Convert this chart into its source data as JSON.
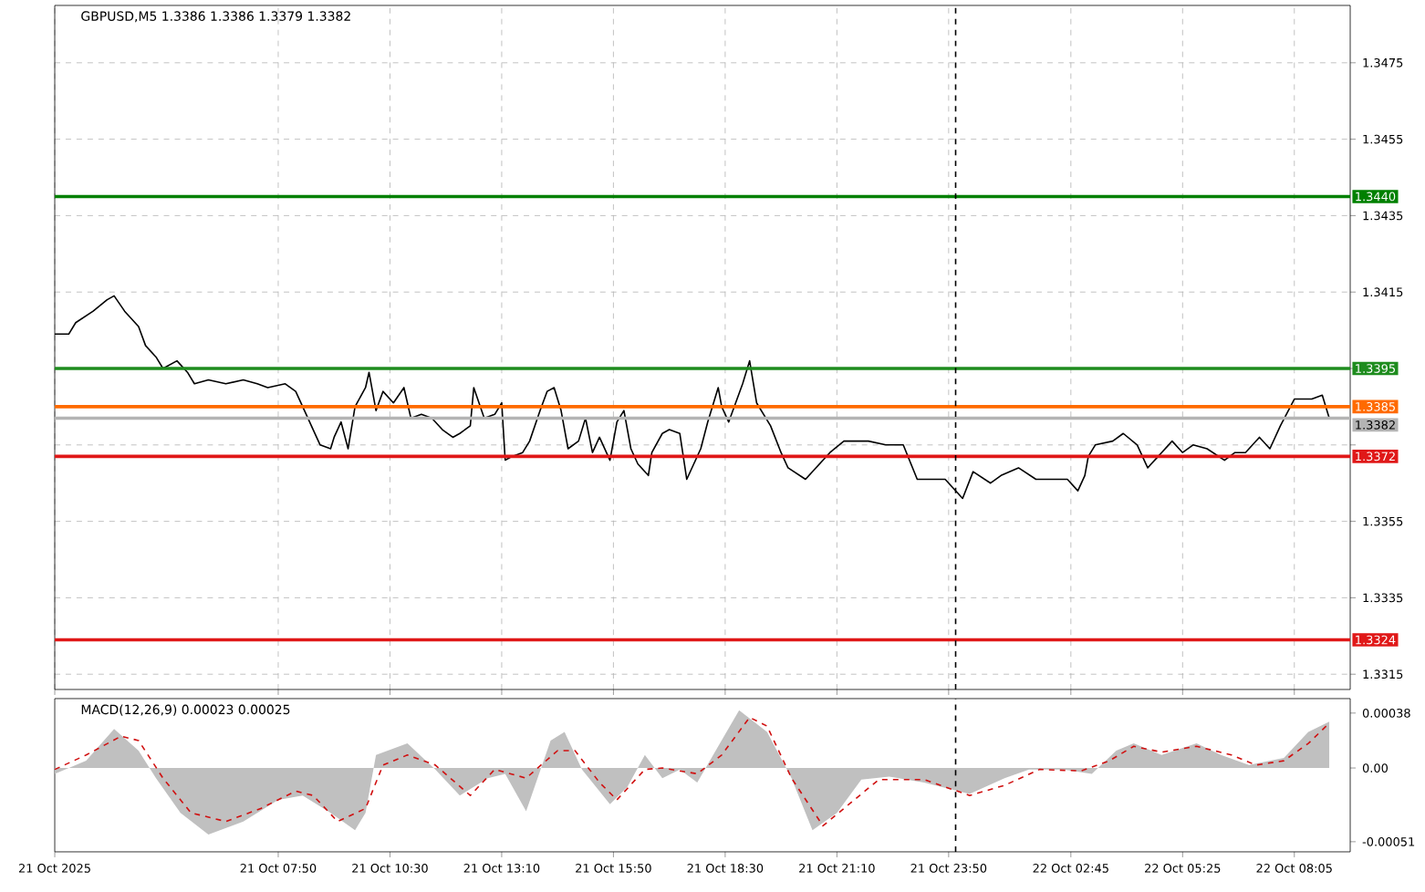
{
  "chart_data": [
    {
      "type": "line",
      "title": "GBPUSD,M5  1.3386 1.3386 1.3379 1.3382",
      "xlim": [
        "2025-10-21T02:30",
        "2025-10-22T09:25"
      ],
      "ylim": [
        1.3311,
        1.349
      ],
      "xticks": [
        {
          "value": "2025-10-21T02:30",
          "label": null
        },
        {
          "value": "2025-10-21T07:50",
          "label": null
        },
        {
          "value": "2025-10-21T10:30",
          "label": null
        },
        {
          "value": "2025-10-21T13:10",
          "label": null
        },
        {
          "value": "2025-10-21T15:50",
          "label": null
        },
        {
          "value": "2025-10-21T18:30",
          "label": null
        },
        {
          "value": "2025-10-21T21:10",
          "label": null
        },
        {
          "value": "2025-10-21T23:50",
          "label": null
        },
        {
          "value": "2025-10-22T02:45",
          "label": null
        },
        {
          "value": "2025-10-22T05:25",
          "label": null
        },
        {
          "value": "2025-10-22T08:05",
          "label": null
        }
      ],
      "yticks": [
        1.3315,
        1.3335,
        1.3355,
        {
          "value": 1.3375,
          "label": null
        },
        {
          "value": 1.3395,
          "label": null
        },
        1.3415,
        1.3435,
        1.3455,
        1.3475
      ],
      "tick_labels": "y",
      "grid": true,
      "line_style": "solid",
      "series": [
        {
          "color": "#000000",
          "x": [
            "2025-10-21T02:30",
            "2025-10-21T02:50",
            "2025-10-21T03:00",
            "2025-10-21T03:25",
            "2025-10-21T03:45",
            "2025-10-21T03:55",
            "2025-10-21T04:10",
            "2025-10-21T04:30",
            "2025-10-21T04:40",
            "2025-10-21T04:55",
            "2025-10-21T05:05",
            "2025-10-21T05:15",
            "2025-10-21T05:25",
            "2025-10-21T05:40",
            "2025-10-21T05:50",
            "2025-10-21T06:10",
            "2025-10-21T06:35",
            "2025-10-21T07:00",
            "2025-10-21T07:20",
            "2025-10-21T07:35",
            "2025-10-21T08:00",
            "2025-10-21T08:15",
            "2025-10-21T08:25",
            "2025-10-21T08:40",
            "2025-10-21T08:50",
            "2025-10-21T09:05",
            "2025-10-21T09:10",
            "2025-10-21T09:20",
            "2025-10-21T09:30",
            "2025-10-21T09:40",
            "2025-10-21T09:55",
            "2025-10-21T10:00",
            "2025-10-21T10:10",
            "2025-10-21T10:20",
            "2025-10-21T10:35",
            "2025-10-21T10:50",
            "2025-10-21T11:00",
            "2025-10-21T11:15",
            "2025-10-21T11:30",
            "2025-10-21T11:45",
            "2025-10-21T12:00",
            "2025-10-21T12:10",
            "2025-10-21T12:25",
            "2025-10-21T12:30",
            "2025-10-21T12:45",
            "2025-10-21T13:00",
            "2025-10-21T13:10",
            "2025-10-21T13:15",
            "2025-10-21T13:25",
            "2025-10-21T13:40",
            "2025-10-21T13:50",
            "2025-10-21T14:05",
            "2025-10-21T14:15",
            "2025-10-21T14:25",
            "2025-10-21T14:35",
            "2025-10-21T14:45",
            "2025-10-21T15:00",
            "2025-10-21T15:10",
            "2025-10-21T15:20",
            "2025-10-21T15:30",
            "2025-10-21T15:45",
            "2025-10-21T15:55",
            "2025-10-21T16:05",
            "2025-10-21T16:15",
            "2025-10-21T16:25",
            "2025-10-21T16:40",
            "2025-10-21T16:45",
            "2025-10-21T17:00",
            "2025-10-21T17:10",
            "2025-10-21T17:25",
            "2025-10-21T17:35",
            "2025-10-21T17:45",
            "2025-10-21T17:55",
            "2025-10-21T18:05",
            "2025-10-21T18:15",
            "2025-10-21T18:20",
            "2025-10-21T18:25",
            "2025-10-21T18:35",
            "2025-10-21T18:55",
            "2025-10-21T19:05",
            "2025-10-21T19:15",
            "2025-10-21T19:35",
            "2025-10-21T19:50",
            "2025-10-21T20:00",
            "2025-10-21T20:25",
            "2025-10-21T21:00",
            "2025-10-21T21:20",
            "2025-10-21T21:55",
            "2025-10-21T22:20",
            "2025-10-21T22:45",
            "2025-10-21T23:05",
            "2025-10-21T23:25",
            "2025-10-21T23:45",
            "2025-10-22T00:10",
            "2025-10-22T00:25",
            "2025-10-22T00:50",
            "2025-10-22T01:05",
            "2025-10-22T01:30",
            "2025-10-22T01:55",
            "2025-10-22T02:15",
            "2025-10-22T02:40",
            "2025-10-22T02:55",
            "2025-10-22T03:05",
            "2025-10-22T03:10",
            "2025-10-22T03:20",
            "2025-10-22T03:45",
            "2025-10-22T04:00",
            "2025-10-22T04:20",
            "2025-10-22T04:35",
            "2025-10-22T04:50",
            "2025-10-22T05:10",
            "2025-10-22T05:25",
            "2025-10-22T05:40",
            "2025-10-22T06:00",
            "2025-10-22T06:25",
            "2025-10-22T06:40",
            "2025-10-22T06:55",
            "2025-10-22T07:15",
            "2025-10-22T07:30",
            "2025-10-22T07:45",
            "2025-10-22T08:05",
            "2025-10-22T08:30",
            "2025-10-22T08:45",
            "2025-10-22T08:55"
          ],
          "values": [
            1.3404,
            1.3404,
            1.3407,
            1.341,
            1.3413,
            1.3414,
            1.341,
            1.3406,
            1.3401,
            1.3398,
            1.3395,
            1.3396,
            1.3397,
            1.3394,
            1.3391,
            1.3392,
            1.3391,
            1.3392,
            1.3391,
            1.339,
            1.3391,
            1.3389,
            1.3385,
            1.3379,
            1.3375,
            1.3374,
            1.3377,
            1.3381,
            1.3374,
            1.3385,
            1.339,
            1.3394,
            1.3384,
            1.3389,
            1.3386,
            1.339,
            1.3382,
            1.3383,
            1.3382,
            1.3379,
            1.3377,
            1.3378,
            1.338,
            1.339,
            1.3382,
            1.3383,
            1.3386,
            1.3371,
            1.3372,
            1.3373,
            1.3376,
            1.3384,
            1.3389,
            1.339,
            1.3384,
            1.3374,
            1.3376,
            1.3382,
            1.3373,
            1.3377,
            1.3371,
            1.3381,
            1.3384,
            1.3374,
            1.337,
            1.3367,
            1.3373,
            1.3378,
            1.3379,
            1.3378,
            1.3366,
            1.337,
            1.3374,
            1.3381,
            1.3387,
            1.339,
            1.3385,
            1.3381,
            1.3391,
            1.3397,
            1.3386,
            1.338,
            1.3373,
            1.3369,
            1.3366,
            1.3373,
            1.3376,
            1.3376,
            1.3375,
            1.3375,
            1.3366,
            1.3366,
            1.3366,
            1.3361,
            1.3368,
            1.3365,
            1.3367,
            1.3369,
            1.3366,
            1.3366,
            1.3366,
            1.3363,
            1.3367,
            1.3372,
            1.3375,
            1.3376,
            1.3378,
            1.3375,
            1.3369,
            1.3372,
            1.3376,
            1.3373,
            1.3375,
            1.3374,
            1.3371,
            1.3373,
            1.3373,
            1.3377,
            1.3374,
            1.338,
            1.3387,
            1.3387,
            1.3388,
            1.3382
          ]
        }
      ],
      "ref_lines": [
        {
          "axis": "y",
          "value": 1.344,
          "label": "1.3440",
          "color": "#008000"
        },
        {
          "axis": "y",
          "value": 1.3395,
          "label": "1.3395",
          "color": "#1e8c1e"
        },
        {
          "axis": "y",
          "value": 1.3385,
          "label": "1.3385",
          "color": "#ff6a00"
        },
        {
          "axis": "y",
          "value": 1.3382,
          "label": "1.3382",
          "color": "#b4b4b4"
        },
        {
          "axis": "y",
          "value": 1.3372,
          "label": "1.3372",
          "color": "#e01818"
        },
        {
          "axis": "y",
          "value": 1.3324,
          "label": "1.3324",
          "color": "#e01818"
        },
        {
          "axis": "x",
          "value": "2025-10-22T00:00",
          "color": "#000000",
          "line_style": "dashed"
        }
      ]
    },
    {
      "type": "area",
      "title": "MACD(12,26,9) 0.00023 0.00025",
      "xlim": [
        "2025-10-21T02:30",
        "2025-10-22T09:25"
      ],
      "ylim": [
        -0.00058,
        0.00048
      ],
      "xticks": [
        {
          "value": "2025-10-21T02:30",
          "label": "21 Oct 2025"
        },
        {
          "value": "2025-10-21T07:50",
          "label": "21 Oct 07:50"
        },
        {
          "value": "2025-10-21T10:30",
          "label": "21 Oct 10:30"
        },
        {
          "value": "2025-10-21T13:10",
          "label": "21 Oct 13:10"
        },
        {
          "value": "2025-10-21T15:50",
          "label": "21 Oct 15:50"
        },
        {
          "value": "2025-10-21T18:30",
          "label": "21 Oct 18:30"
        },
        {
          "value": "2025-10-21T21:10",
          "label": "21 Oct 21:10"
        },
        {
          "value": "2025-10-21T23:50",
          "label": "21 Oct 23:50"
        },
        {
          "value": "2025-10-22T02:45",
          "label": "22 Oct 02:45"
        },
        {
          "value": "2025-10-22T05:25",
          "label": "22 Oct 05:25"
        },
        {
          "value": "2025-10-22T08:05",
          "label": "22 Oct 08:05"
        }
      ],
      "yticks": [
        -0.00051,
        {
          "value": 0,
          "label": "0.00"
        },
        0.00038
      ],
      "series": [
        {
          "type": "area",
          "color": "#c0c0c0",
          "x": [
            "2025-10-21T02:30",
            "2025-10-21T03:15",
            "2025-10-21T03:55",
            "2025-10-21T04:30",
            "2025-10-21T04:55",
            "2025-10-21T05:30",
            "2025-10-21T06:10",
            "2025-10-21T07:00",
            "2025-10-21T07:50",
            "2025-10-21T08:25",
            "2025-10-21T09:05",
            "2025-10-21T09:40",
            "2025-10-21T09:55",
            "2025-10-21T10:10",
            "2025-10-21T10:55",
            "2025-10-21T11:35",
            "2025-10-21T12:10",
            "2025-10-21T12:50",
            "2025-10-21T13:15",
            "2025-10-21T13:45",
            "2025-10-21T14:20",
            "2025-10-21T14:40",
            "2025-10-21T15:05",
            "2025-10-21T15:45",
            "2025-10-21T16:10",
            "2025-10-21T16:35",
            "2025-10-21T17:00",
            "2025-10-21T17:25",
            "2025-10-21T17:50",
            "2025-10-21T18:20",
            "2025-10-21T18:50",
            "2025-10-21T19:30",
            "2025-10-21T20:05",
            "2025-10-21T20:35",
            "2025-10-21T21:10",
            "2025-10-21T21:45",
            "2025-10-21T22:25",
            "2025-10-21T23:15",
            "2025-10-22T00:20",
            "2025-10-22T01:10",
            "2025-10-22T01:45",
            "2025-10-22T02:35",
            "2025-10-22T03:15",
            "2025-10-22T03:50",
            "2025-10-22T04:15",
            "2025-10-22T04:55",
            "2025-10-22T05:45",
            "2025-10-22T06:20",
            "2025-10-22T07:00",
            "2025-10-22T07:50",
            "2025-10-22T08:25",
            "2025-10-22T08:55"
          ],
          "values": [
            -4e-05,
            5e-05,
            0.00027,
            0.00012,
            -7e-05,
            -0.00031,
            -0.00046,
            -0.00037,
            -0.00022,
            -0.00019,
            -0.00031,
            -0.00043,
            -0.00031,
            9e-05,
            0.00017,
            -1e-05,
            -0.00019,
            -7e-05,
            -4e-05,
            -0.0003,
            0.00019,
            0.00025,
            -1e-05,
            -0.00025,
            -0.00013,
            9e-05,
            -7e-05,
            -1e-05,
            -0.0001,
            0.00015,
            0.0004,
            0.00025,
            -7e-05,
            -0.00043,
            -0.00031,
            -8e-05,
            -6e-05,
            -0.0001,
            -0.00018,
            -7e-05,
            -1e-05,
            -1e-05,
            -4e-05,
            0.00012,
            0.00017,
            9e-05,
            0.00017,
            9e-05,
            2e-05,
            7e-05,
            0.00025,
            0.00032
          ]
        },
        {
          "type": "line",
          "line_style": "dashed",
          "color": "#d01010",
          "x": [
            "2025-10-21T02:30",
            "2025-10-21T03:15",
            "2025-10-21T04:05",
            "2025-10-21T04:30",
            "2025-10-21T05:05",
            "2025-10-21T05:45",
            "2025-10-21T06:35",
            "2025-10-21T07:25",
            "2025-10-21T08:15",
            "2025-10-21T08:40",
            "2025-10-21T09:15",
            "2025-10-21T09:55",
            "2025-10-21T10:20",
            "2025-10-21T10:55",
            "2025-10-21T11:35",
            "2025-10-21T12:25",
            "2025-10-21T13:00",
            "2025-10-21T13:45",
            "2025-10-21T14:30",
            "2025-10-21T14:55",
            "2025-10-21T15:30",
            "2025-10-21T15:55",
            "2025-10-21T16:35",
            "2025-10-21T17:00",
            "2025-10-21T17:50",
            "2025-10-21T18:25",
            "2025-10-21T19:05",
            "2025-10-21T19:30",
            "2025-10-21T20:05",
            "2025-10-21T20:50",
            "2025-10-21T21:20",
            "2025-10-21T22:10",
            "2025-10-21T23:15",
            "2025-10-22T00:20",
            "2025-10-22T01:10",
            "2025-10-22T02:00",
            "2025-10-22T03:00",
            "2025-10-22T03:40",
            "2025-10-22T04:15",
            "2025-10-22T04:55",
            "2025-10-22T05:45",
            "2025-10-22T06:35",
            "2025-10-22T07:10",
            "2025-10-22T07:50",
            "2025-10-22T08:25",
            "2025-10-22T08:55"
          ],
          "values": [
            -1e-05,
            9e-05,
            0.00022,
            0.00019,
            -7e-05,
            -0.00031,
            -0.00037,
            -0.00028,
            -0.00016,
            -0.00019,
            -0.00037,
            -0.00028,
            2e-05,
            9e-05,
            2e-05,
            -0.00019,
            -1e-05,
            -7e-05,
            0.00012,
            0.00012,
            -0.0001,
            -0.00022,
            -1e-05,
            0,
            -4e-05,
            9e-05,
            0.00035,
            0.00029,
            -7e-05,
            -0.0004,
            -0.00028,
            -8e-05,
            -8e-05,
            -0.00019,
            -0.00012,
            -1e-05,
            -2e-05,
            5e-05,
            0.00015,
            0.00011,
            0.00015,
            9e-05,
            2e-05,
            5e-05,
            0.00017,
            0.00031
          ]
        }
      ],
      "ref_lines": [
        {
          "axis": "x",
          "value": "2025-10-22T00:00",
          "color": "#000000",
          "line_style": "dashed"
        }
      ]
    }
  ]
}
